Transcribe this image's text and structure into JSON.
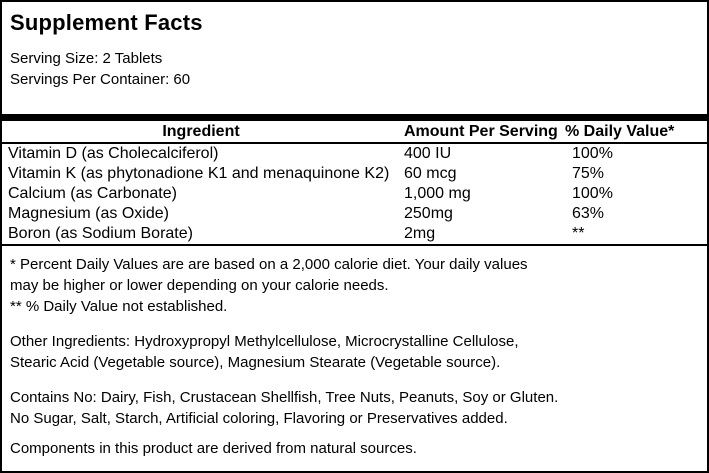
{
  "title": "Supplement Facts",
  "serving_info": {
    "serving_size": "Serving Size: 2 Tablets",
    "servings_per_container": "Servings Per Container: 60"
  },
  "table": {
    "headers": {
      "ingredient": "Ingredient",
      "amount": "Amount Per Serving",
      "daily_value": "% Daily Value*"
    },
    "rows": [
      {
        "ingredient": "Vitamin D (as Cholecalciferol)",
        "amount": "400 IU",
        "daily_value": "100%"
      },
      {
        "ingredient": "Vitamin K (as phytonadione K1 and menaquinone K2)",
        "amount": "60 mcg",
        "daily_value": "75%"
      },
      {
        "ingredient": "Calcium (as Carbonate)",
        "amount": "1,000 mg",
        "daily_value": "100%"
      },
      {
        "ingredient": "Magnesium (as Oxide)",
        "amount": "250mg",
        "daily_value": "63%"
      },
      {
        "ingredient": "Boron (as Sodium Borate)",
        "amount": "2mg",
        "daily_value": "**"
      }
    ]
  },
  "footnotes": {
    "daily_value_lines": [
      "* Percent Daily Values are are based on a 2,000 calorie diet. Your daily values",
      "may be higher or lower depending on your calorie needs.",
      "** % Daily Value not established."
    ],
    "other_ingredients_lines": [
      "Other Ingredients: Hydroxypropyl Methylcellulose, Microcrystalline Cellulose,",
      "Stearic Acid (Vegetable source), Magnesium Stearate (Vegetable source)."
    ],
    "contains_no_lines": [
      "Contains No: Dairy, Fish, Crustacean Shellfish, Tree Nuts, Peanuts, Soy or Gluten.",
      "No Sugar, Salt, Starch, Artificial coloring, Flavoring or Preservatives added."
    ],
    "natural_sources": "Components in this product are derived from natural sources."
  },
  "colors": {
    "text": "#000000",
    "background": "#ffffff",
    "border": "#000000"
  }
}
